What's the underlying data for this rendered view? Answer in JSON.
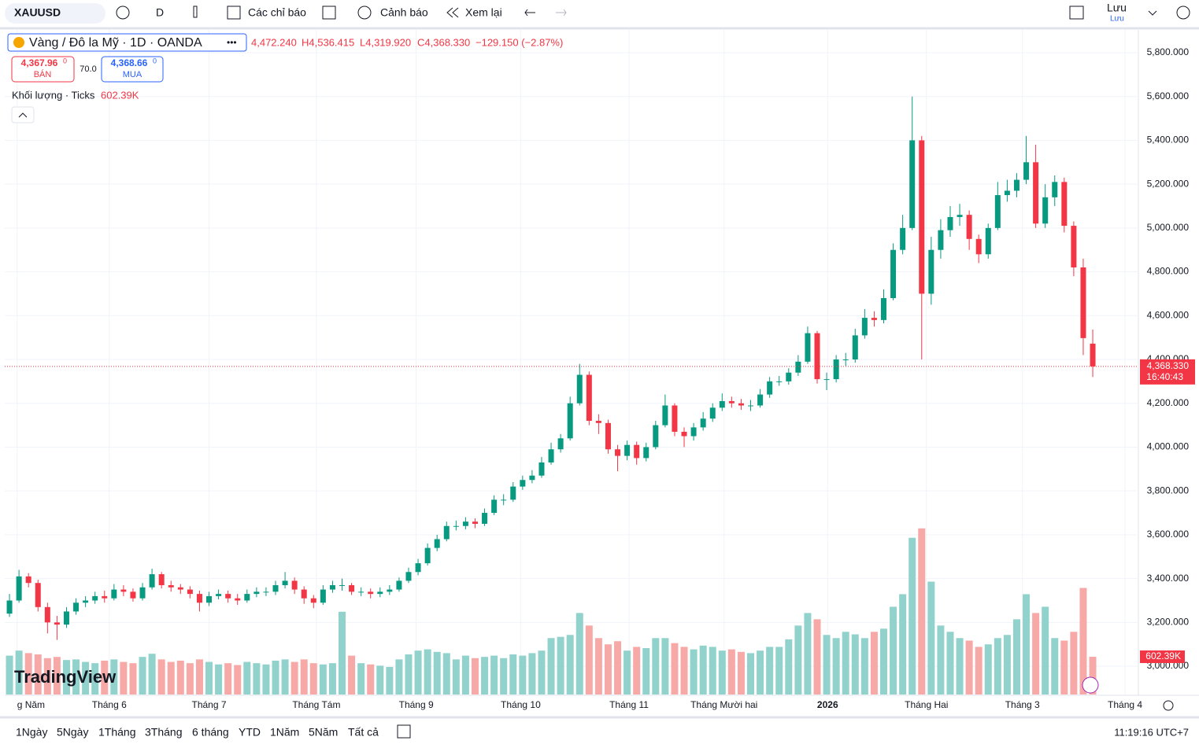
{
  "toolbar": {
    "symbol": "XAUUSD",
    "interval": "D",
    "indicators": "Các chỉ báo",
    "alerts": "Cảnh báo",
    "replay": "Xem lại",
    "save": "Lưu",
    "save_sub": "Lưu"
  },
  "legend": {
    "ohlc": [
      "4,472.240",
      "H4,536.415",
      "L4,319.920",
      "C4,368.330",
      "−129.150 (−2.87%)"
    ],
    "sell": "4,367.96",
    "sell_sup": "0",
    "sell_label": "BÁN",
    "spread": "70.0",
    "buy": "4,368.66",
    "buy_sup": "0",
    "buy_label": "MUA",
    "volume_title": "Khối lượng · Ticks",
    "volume_value": "602.39K"
  },
  "logo": "TradingView",
  "range_buttons": [
    "1Ngày",
    "5Ngày",
    "1Tháng",
    "3Tháng",
    "6 tháng",
    "YTD",
    "1Năm",
    "5Năm",
    "Tất cả"
  ],
  "clock": "11:19:16 UTC+7",
  "chart_data": {
    "type": "candlestick",
    "title": "Vàng / Đô la Mỹ · 1D · OANDA",
    "open": [
      3240,
      3300,
      3410,
      3380,
      3270,
      3200,
      3190,
      3250,
      3290,
      3300,
      3320,
      3310,
      3350,
      3340,
      3310,
      3360,
      3420,
      3370,
      3360,
      3350,
      3330,
      3290,
      3320,
      3330,
      3310,
      3300,
      3330,
      3340,
      3340,
      3370,
      3390,
      3350,
      3310,
      3290,
      3350,
      3370,
      3370,
      3340,
      3340,
      3330,
      3340,
      3350,
      3390,
      3430,
      3470,
      3540,
      3580,
      3640,
      3640,
      3660,
      3650,
      3700,
      3760,
      3760,
      3820,
      3850,
      3870,
      3930,
      3990,
      4040,
      4200,
      4330,
      4120,
      4110,
      3990,
      3960,
      4010,
      3950,
      4000,
      4100,
      4190,
      4070,
      4050,
      4090,
      4130,
      4180,
      4210,
      4200,
      4190,
      4190,
      4240,
      4300,
      4300,
      4340,
      4390,
      4520,
      4310,
      4310,
      4400,
      4400,
      4510,
      4590,
      4580,
      4680,
      4900,
      5000,
      5400,
      4700,
      4900,
      4990,
      5050,
      5060,
      4950,
      4880,
      5000,
      5150,
      5170,
      5220,
      5300,
      5020,
      5140,
      5210,
      5010,
      4820,
      4472.24
    ],
    "high": [
      3330,
      3440,
      3425,
      3395,
      3290,
      3230,
      3270,
      3310,
      3320,
      3340,
      3345,
      3375,
      3370,
      3355,
      3380,
      3445,
      3430,
      3390,
      3375,
      3365,
      3345,
      3340,
      3350,
      3345,
      3330,
      3350,
      3360,
      3360,
      3390,
      3430,
      3405,
      3365,
      3325,
      3370,
      3390,
      3400,
      3380,
      3360,
      3355,
      3360,
      3370,
      3405,
      3450,
      3490,
      3560,
      3600,
      3660,
      3665,
      3680,
      3675,
      3720,
      3780,
      3785,
      3840,
      3870,
      3895,
      3955,
      4020,
      4060,
      4230,
      4380,
      4345,
      4150,
      4125,
      4010,
      4030,
      4025,
      4020,
      4120,
      4240,
      4200,
      4090,
      4110,
      4160,
      4200,
      4245,
      4230,
      4220,
      4215,
      4265,
      4320,
      4325,
      4360,
      4420,
      4550,
      4530,
      4340,
      4420,
      4430,
      4540,
      4630,
      4620,
      4720,
      4930,
      5060,
      5600,
      5420,
      4960,
      5040,
      5100,
      5110,
      5080,
      4970,
      5020,
      5210,
      5220,
      5250,
      5420,
      5380,
      5200,
      5240,
      5230,
      5030,
      4860,
      4536.415
    ],
    "low": [
      3225,
      3290,
      3360,
      3250,
      3150,
      3120,
      3175,
      3235,
      3270,
      3285,
      3290,
      3300,
      3320,
      3295,
      3300,
      3350,
      3355,
      3340,
      3330,
      3310,
      3250,
      3275,
      3305,
      3290,
      3280,
      3290,
      3315,
      3320,
      3325,
      3355,
      3330,
      3285,
      3265,
      3280,
      3335,
      3345,
      3325,
      3320,
      3310,
      3315,
      3325,
      3340,
      3380,
      3415,
      3460,
      3525,
      3570,
      3620,
      3625,
      3630,
      3640,
      3690,
      3735,
      3750,
      3805,
      3835,
      3860,
      3920,
      3975,
      4030,
      4190,
      4100,
      4060,
      3970,
      3890,
      3940,
      3920,
      3935,
      3990,
      4090,
      4050,
      4000,
      4030,
      4075,
      4115,
      4165,
      4180,
      4170,
      4165,
      4180,
      4225,
      4280,
      4285,
      4325,
      4380,
      4290,
      4260,
      4295,
      4370,
      4385,
      4495,
      4550,
      4565,
      4670,
      4880,
      4990,
      4400,
      4650,
      4860,
      4960,
      5010,
      4900,
      4840,
      4860,
      4990,
      5120,
      5140,
      5200,
      5000,
      5000,
      5100,
      4980,
      4780,
      4420,
      4319.92
    ],
    "close": [
      3300,
      3410,
      3380,
      3270,
      3200,
      3190,
      3250,
      3290,
      3300,
      3320,
      3310,
      3350,
      3340,
      3310,
      3360,
      3420,
      3370,
      3360,
      3350,
      3330,
      3290,
      3320,
      3330,
      3310,
      3300,
      3330,
      3340,
      3340,
      3370,
      3390,
      3350,
      3310,
      3290,
      3350,
      3370,
      3370,
      3340,
      3340,
      3330,
      3340,
      3350,
      3390,
      3430,
      3470,
      3540,
      3580,
      3640,
      3640,
      3660,
      3650,
      3700,
      3760,
      3760,
      3820,
      3850,
      3870,
      3930,
      3990,
      4040,
      4200,
      4330,
      4120,
      4110,
      3990,
      3960,
      4010,
      3950,
      4000,
      4100,
      4190,
      4070,
      4050,
      4090,
      4130,
      4180,
      4210,
      4200,
      4190,
      4190,
      4240,
      4300,
      4300,
      4340,
      4390,
      4520,
      4310,
      4310,
      4400,
      4400,
      4510,
      4590,
      4580,
      4680,
      4900,
      5000,
      5400,
      4700,
      4900,
      4990,
      5050,
      5060,
      4950,
      4880,
      5000,
      5150,
      5170,
      5220,
      5300,
      5020,
      5140,
      5210,
      5010,
      4820,
      4497.48,
      4368.33
    ],
    "volume": [
      620,
      700,
      660,
      640,
      580,
      600,
      550,
      560,
      520,
      500,
      540,
      560,
      520,
      500,
      600,
      650,
      560,
      520,
      540,
      500,
      560,
      520,
      480,
      500,
      470,
      520,
      500,
      480,
      540,
      560,
      520,
      560,
      500,
      480,
      500,
      1320,
      620,
      500,
      480,
      460,
      440,
      560,
      640,
      700,
      720,
      680,
      660,
      560,
      620,
      580,
      600,
      620,
      580,
      640,
      620,
      660,
      700,
      900,
      920,
      950,
      1300,
      1100,
      900,
      800,
      850,
      700,
      760,
      740,
      900,
      900,
      820,
      760,
      720,
      780,
      760,
      700,
      720,
      680,
      660,
      700,
      760,
      760,
      880,
      1100,
      1300,
      1200,
      950,
      900,
      1000,
      960,
      900,
      1000,
      1050,
      1400,
      1600,
      2500,
      2650,
      1800,
      1100,
      1000,
      900,
      860,
      760,
      800,
      900,
      950,
      1200,
      1600,
      1300,
      1400,
      900,
      860,
      1000,
      1700,
      602.39
    ],
    "up_color": "#089981",
    "down_color": "#f23645",
    "up_volume_color": "#92d2cc",
    "down_volume_color": "#f7a9a7",
    "ylim": [
      2871,
      5904
    ],
    "yticks": [
      {
        "value": 3000,
        "label": "3,000.000"
      },
      {
        "value": 3200,
        "label": "3,200.000"
      },
      {
        "value": 3400,
        "label": "3,400.000"
      },
      {
        "value": 3600,
        "label": "3,600.000"
      },
      {
        "value": 3800,
        "label": "3,800.000"
      },
      {
        "value": 4000,
        "label": "4,000.000"
      },
      {
        "value": 4200,
        "label": "4,200.000"
      },
      {
        "value": 4400,
        "label": "4,400.000"
      },
      {
        "value": 4600,
        "label": "4,600.000"
      },
      {
        "value": 4800,
        "label": "4,800.000"
      },
      {
        "value": 5000,
        "label": "5,000.000"
      },
      {
        "value": 5200,
        "label": "5,200.000"
      },
      {
        "value": 5400,
        "label": "5,400.000"
      },
      {
        "value": 5600,
        "label": "5,600.000"
      },
      {
        "value": 5800,
        "label": "5,800.000"
      }
    ],
    "xlim": [
      -0.17,
      118.9
    ],
    "xticks": [
      {
        "value": 0.8,
        "label": "g Năm"
      },
      {
        "value": 10.5,
        "label": "Tháng 6"
      },
      {
        "value": 21,
        "label": "Tháng 7"
      },
      {
        "value": 32.3,
        "label": "Tháng Tám"
      },
      {
        "value": 42.8,
        "label": "Tháng 9"
      },
      {
        "value": 53.8,
        "label": "Tháng 10"
      },
      {
        "value": 65.2,
        "label": "Tháng 11"
      },
      {
        "value": 75.2,
        "label": "Tháng Mười hai"
      },
      {
        "value": 86.1,
        "label": "2026"
      },
      {
        "value": 96.5,
        "label": "Tháng Hai"
      },
      {
        "value": 106.6,
        "label": "Tháng 3"
      },
      {
        "value": 117.4,
        "label": "Tháng 4"
      }
    ],
    "volume_ylim": [
      0,
      10600
    ],
    "last_price_label": "4,368.330",
    "countdown": "16:40:43",
    "grid": true
  }
}
